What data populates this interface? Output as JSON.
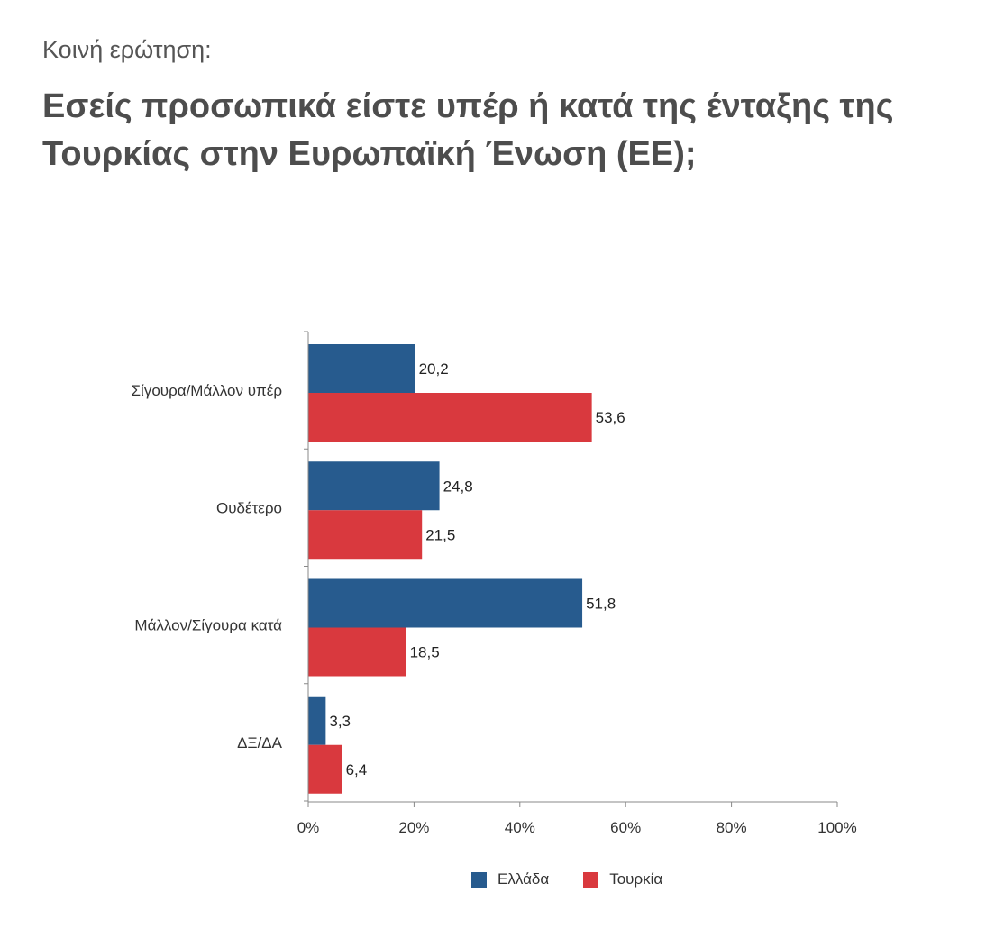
{
  "header": {
    "subtitle": "Κοινή ερώτηση:",
    "title": "Εσείς προσωπικά είστε υπέρ ή κατά της ένταξης της Τουρκίας στην Ευρωπαϊκή Ένωση (ΕΕ);"
  },
  "colors": {
    "greece": "#275b8e",
    "turkey": "#d9393e",
    "axis": "#888888"
  },
  "chart_data": {
    "type": "bar",
    "orientation": "horizontal",
    "categories": [
      "Σίγουρα/Μάλλον υπέρ",
      "Ουδέτερο",
      "Μάλλον/Σίγουρα κατά",
      "ΔΞ/ΔΑ"
    ],
    "series": [
      {
        "name": "Ελλάδα",
        "values": [
          20.2,
          24.8,
          51.8,
          3.3
        ],
        "labels": [
          "20,2",
          "24,8",
          "51,8",
          "3,3"
        ]
      },
      {
        "name": "Τουρκία",
        "values": [
          53.6,
          21.5,
          18.5,
          6.4
        ],
        "labels": [
          "53,6",
          "21,5",
          "18,5",
          "6,4"
        ]
      }
    ],
    "xlim": [
      0,
      100
    ],
    "x_ticks": [
      0,
      20,
      40,
      60,
      80,
      100
    ],
    "x_tick_labels": [
      "0%",
      "20%",
      "40%",
      "60%",
      "80%",
      "100%"
    ],
    "legend_position": "bottom",
    "grid": false
  }
}
